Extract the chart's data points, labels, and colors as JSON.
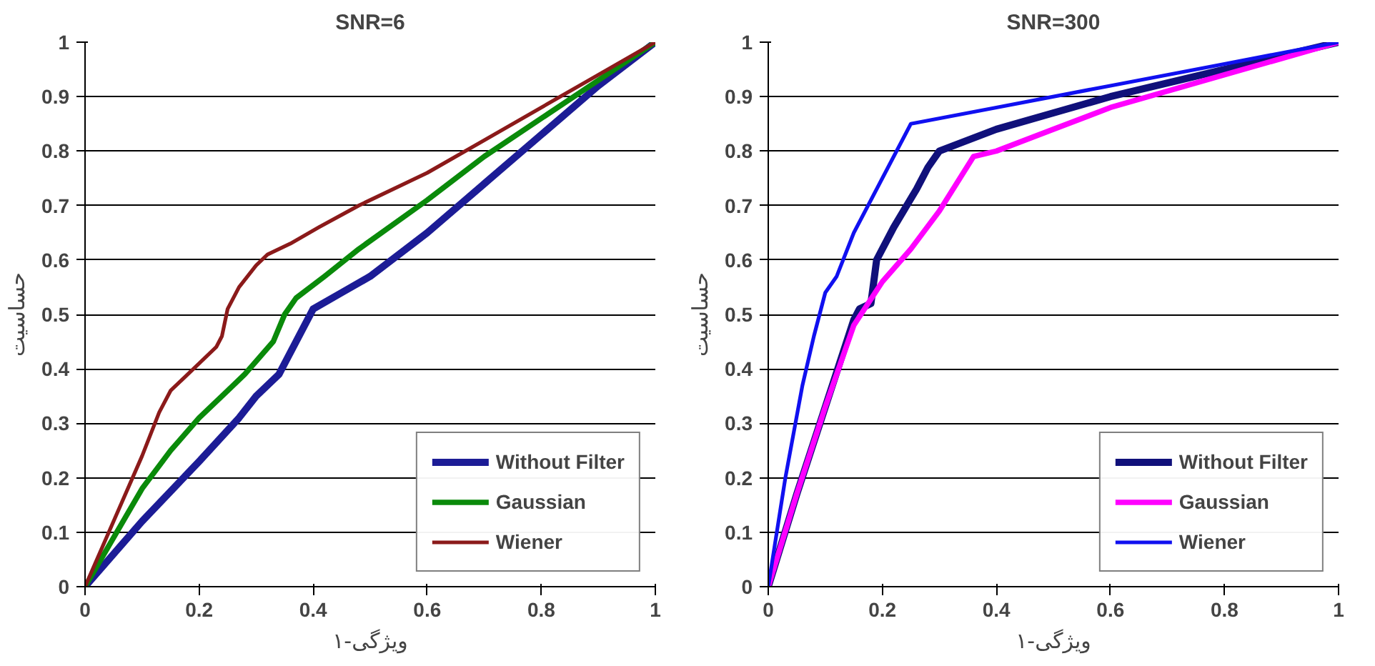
{
  "chart_data": [
    {
      "type": "line",
      "title": "SNR=6",
      "xlabel": "ویژگی-۱",
      "ylabel": "حساسیت",
      "xlim": [
        0,
        1
      ],
      "ylim": [
        0,
        1
      ],
      "xticks": [
        0,
        0.2,
        0.4,
        0.6,
        0.8,
        1
      ],
      "yticks": [
        0,
        0.1,
        0.2,
        0.3,
        0.4,
        0.5,
        0.6,
        0.7,
        0.8,
        0.9,
        1
      ],
      "grid": "y",
      "legend": "bottom right",
      "series": [
        {
          "name": "Without Filter",
          "color": "#1c1c96",
          "x": [
            0,
            0.1,
            0.2,
            0.27,
            0.3,
            0.34,
            0.37,
            0.4,
            0.45,
            0.5,
            0.6,
            0.7,
            0.8,
            0.9,
            1
          ],
          "values": [
            0,
            0.12,
            0.23,
            0.31,
            0.35,
            0.39,
            0.45,
            0.51,
            0.54,
            0.57,
            0.65,
            0.74,
            0.83,
            0.92,
            1
          ]
        },
        {
          "name": "Gaussian",
          "color": "#0a8a0a",
          "x": [
            0,
            0.1,
            0.15,
            0.2,
            0.25,
            0.28,
            0.33,
            0.35,
            0.37,
            0.42,
            0.48,
            0.6,
            0.7,
            0.8,
            0.9,
            1
          ],
          "values": [
            0,
            0.18,
            0.25,
            0.31,
            0.36,
            0.39,
            0.45,
            0.5,
            0.53,
            0.57,
            0.62,
            0.71,
            0.79,
            0.86,
            0.93,
            1
          ]
        },
        {
          "name": "Wiener",
          "color": "#8b1a1a",
          "x": [
            0,
            0.05,
            0.1,
            0.13,
            0.15,
            0.2,
            0.23,
            0.24,
            0.25,
            0.27,
            0.3,
            0.32,
            0.36,
            0.41,
            0.48,
            0.6,
            0.7,
            0.8,
            0.9,
            1
          ],
          "values": [
            0,
            0.12,
            0.24,
            0.32,
            0.36,
            0.41,
            0.44,
            0.46,
            0.51,
            0.55,
            0.59,
            0.61,
            0.63,
            0.66,
            0.7,
            0.76,
            0.82,
            0.88,
            0.94,
            1
          ]
        }
      ]
    },
    {
      "type": "line",
      "title": "SNR=300",
      "xlabel": "ویژگی-۱",
      "ylabel": "حساسیت",
      "xlim": [
        0,
        1
      ],
      "ylim": [
        0,
        1
      ],
      "xticks": [
        0,
        0.2,
        0.4,
        0.6,
        0.8,
        1
      ],
      "yticks": [
        0,
        0.1,
        0.2,
        0.3,
        0.4,
        0.5,
        0.6,
        0.7,
        0.8,
        0.9,
        1
      ],
      "grid": "y",
      "legend": "bottom right",
      "series": [
        {
          "name": "Without Filter",
          "color": "#10107a",
          "x": [
            0,
            0.05,
            0.1,
            0.15,
            0.16,
            0.18,
            0.19,
            0.22,
            0.26,
            0.28,
            0.3,
            0.35,
            0.4,
            0.5,
            0.6,
            0.8,
            1
          ],
          "values": [
            0,
            0.17,
            0.33,
            0.49,
            0.51,
            0.52,
            0.6,
            0.66,
            0.73,
            0.77,
            0.8,
            0.82,
            0.84,
            0.87,
            0.9,
            0.95,
            1
          ]
        },
        {
          "name": "Gaussian",
          "color": "#ff00ff",
          "x": [
            0,
            0.05,
            0.1,
            0.15,
            0.2,
            0.25,
            0.3,
            0.36,
            0.4,
            0.5,
            0.6,
            0.8,
            1
          ],
          "values": [
            0,
            0.17,
            0.33,
            0.48,
            0.56,
            0.62,
            0.69,
            0.79,
            0.8,
            0.84,
            0.88,
            0.94,
            1
          ]
        },
        {
          "name": "Wiener",
          "color": "#1010f0",
          "x": [
            0,
            0.03,
            0.06,
            0.08,
            0.1,
            0.12,
            0.15,
            0.17,
            0.2,
            0.25,
            0.4,
            0.6,
            0.8,
            1
          ],
          "values": [
            0,
            0.2,
            0.37,
            0.46,
            0.54,
            0.57,
            0.65,
            0.69,
            0.75,
            0.85,
            0.88,
            0.92,
            0.96,
            1
          ]
        }
      ]
    }
  ]
}
